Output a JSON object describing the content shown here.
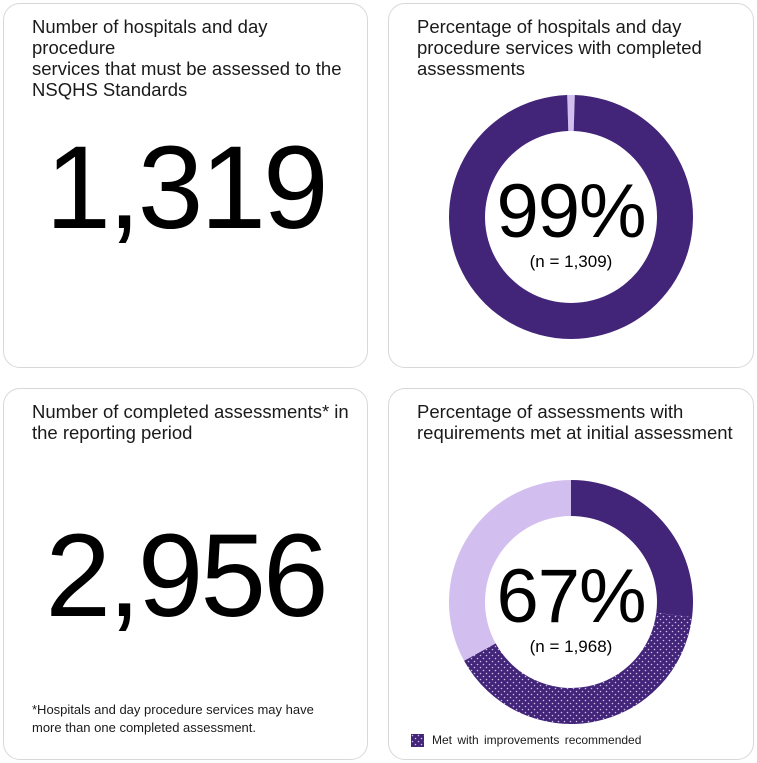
{
  "colors": {
    "purple": "#422478",
    "lavender": "#d2bff0",
    "pattern_dot": "#cdc0ea",
    "card_border": "#d8d8d8",
    "text": "#1a1a1a"
  },
  "cards": {
    "must_be_assessed": {
      "title": "Number of hospitals and day procedure\nservices that must be assessed to the\nNSQHS Standards",
      "value": "1,319"
    },
    "completed_pct": {
      "title": "Percentage of hospitals and day\nprocedure services with completed\nassessments",
      "percent": "99%",
      "n": "(n = 1,309)"
    },
    "completed_count": {
      "title": "Number of completed assessments* in\nthe reporting period",
      "value": "2,956",
      "footnote": "*Hospitals and day procedure services may have\nmore than one completed assessment."
    },
    "met_pct": {
      "title": "Percentage of assessments with\nrequirements met at initial assessment",
      "percent": "67%",
      "n": "(n = 1,968)",
      "legend": "Met with improvements recommended"
    }
  },
  "chart_data": [
    {
      "type": "pie",
      "donut": true,
      "title": "Percentage of hospitals and day procedure services with completed assessments",
      "center_label": "99%",
      "n_label": "(n = 1,309)",
      "start_offset_deg": -1.8,
      "segments": [
        {
          "pct": 1,
          "paint": "lavender"
        },
        {
          "pct": 99,
          "paint": "purple"
        }
      ]
    },
    {
      "type": "pie",
      "donut": true,
      "title": "Percentage of assessments with requirements met at initial assessment",
      "center_label": "67%",
      "n_label": "(n = 1,968)",
      "start_offset_deg": 0,
      "segments": [
        {
          "pct": 27,
          "paint": "purple"
        },
        {
          "pct": 40,
          "paint": "dots",
          "label": "Met with improvements recommended"
        },
        {
          "pct": 33,
          "paint": "lavender"
        }
      ]
    }
  ]
}
